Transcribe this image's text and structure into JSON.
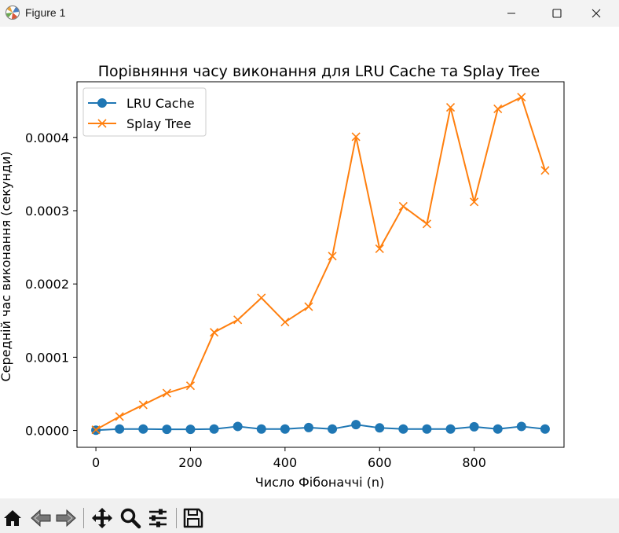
{
  "window": {
    "title": "Figure 1",
    "icons": [
      "matplotlib-icon",
      "minimize-icon",
      "maximize-icon",
      "close-icon"
    ]
  },
  "toolbar": {
    "icons": [
      "home-icon",
      "back-arrow-icon",
      "forward-arrow-icon",
      "pan-icon",
      "zoom-icon",
      "configure-subplots-icon",
      "save-icon"
    ]
  },
  "chart_data": {
    "type": "line",
    "title": "Порівняння часу виконання для LRU Cache та Splay Tree",
    "xlabel": "Число Фібоначчі (n)",
    "ylabel": "Середній час виконання (секунди)",
    "xlim": [
      -40,
      990
    ],
    "ylim": [
      -2.3e-05,
      0.000476
    ],
    "xticks": [
      0,
      200,
      400,
      600,
      800
    ],
    "yticks": [
      0.0,
      0.0001,
      0.0002,
      0.0003,
      0.0004
    ],
    "xtick_labels": [
      "0",
      "200",
      "400",
      "600",
      "800"
    ],
    "ytick_labels": [
      "0.0000",
      "0.0001",
      "0.0002",
      "0.0003",
      "0.0004"
    ],
    "legend": "top-left",
    "grid": false,
    "x": [
      0,
      50,
      100,
      150,
      200,
      250,
      300,
      350,
      400,
      450,
      500,
      550,
      600,
      650,
      700,
      750,
      800,
      850,
      900,
      950
    ],
    "series": [
      {
        "name": "LRU Cache",
        "marker": "circle",
        "color": "#1f77b4",
        "values": [
          3e-07,
          2e-06,
          2e-06,
          1.5e-06,
          1.5e-06,
          2e-06,
          5.5e-06,
          2e-06,
          2e-06,
          4e-06,
          2e-06,
          8e-06,
          3.5e-06,
          2e-06,
          2e-06,
          2e-06,
          5e-06,
          2e-06,
          5.5e-06,
          2e-06
        ]
      },
      {
        "name": "Splay Tree",
        "marker": "x",
        "color": "#ff7f0e",
        "values": [
          1e-06,
          1.9e-05,
          3.5e-05,
          5.1e-05,
          6.1e-05,
          0.000134,
          0.000151,
          0.000181,
          0.000148,
          0.000169,
          0.000238,
          0.000401,
          0.000248,
          0.000306,
          0.000282,
          0.000441,
          0.000312,
          0.000439,
          0.000455,
          0.000355
        ]
      }
    ]
  }
}
